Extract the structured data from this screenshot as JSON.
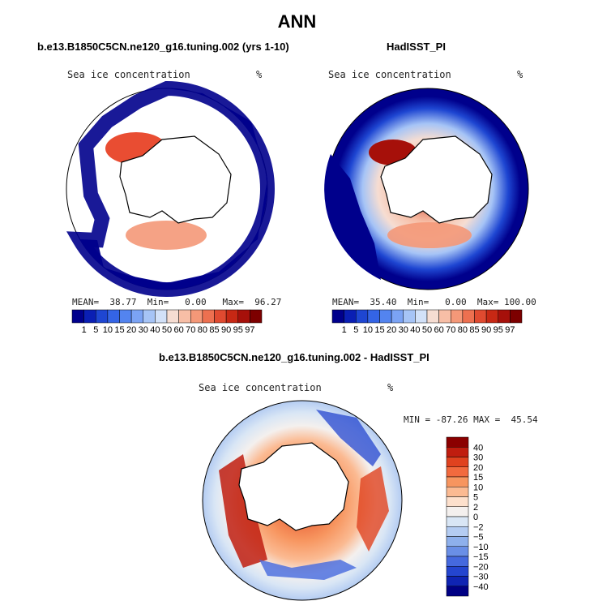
{
  "figure": {
    "title": "ANN",
    "panels": [
      {
        "title": "b.e13.B1850C5CN.ne120_g16.tuning.002 (yrs 1-10)",
        "variable": "Sea ice concentration",
        "units": "%",
        "stats": {
          "mean_label": "MEAN=",
          "mean": "38.77",
          "min_label": "Min=",
          "min": "0.00",
          "max_label": "Max=",
          "max": "96.27"
        }
      },
      {
        "title": "HadISST_PI",
        "variable": "Sea ice concentration",
        "units": "%",
        "stats": {
          "mean_label": "MEAN=",
          "mean": "35.40",
          "min_label": "Min=",
          "min": "0.00",
          "max_label": "Max=",
          "max": "100.00"
        }
      },
      {
        "title": "b.e13.B1850C5CN.ne120_g16.tuning.002 - HadISST_PI",
        "variable": "Sea ice concentration",
        "units": "%",
        "stats_text": "MIN = -87.26 MAX =  45.54"
      }
    ]
  },
  "colorbars": {
    "abs_levels": [
      "1",
      "5",
      "10",
      "15",
      "20",
      "30",
      "40",
      "50",
      "60",
      "70",
      "80",
      "85",
      "90",
      "95",
      "97"
    ],
    "abs_colors": [
      "#00008c",
      "#0a1fb4",
      "#1e46d2",
      "#3464e6",
      "#5384ef",
      "#7ba3f4",
      "#a6c4f6",
      "#d2e1f8",
      "#f6ddd2",
      "#f7bea6",
      "#f49878",
      "#ed7050",
      "#e04a30",
      "#c72814",
      "#a6100a",
      "#7d0000"
    ],
    "diff_levels": [
      "40",
      "30",
      "20",
      "15",
      "10",
      "5",
      "2",
      "0",
      "−2",
      "−5",
      "−10",
      "−15",
      "−20",
      "−30",
      "−40"
    ],
    "diff_colors": [
      "#8b0000",
      "#c01d0f",
      "#e0421f",
      "#f26a3e",
      "#f7955f",
      "#fbba92",
      "#fde0cc",
      "#f4f0ee",
      "#d9e6f5",
      "#b4ccf2",
      "#8eb0ec",
      "#6a8fe6",
      "#4569de",
      "#2445cf",
      "#0f24b3",
      "#000084"
    ]
  },
  "map_style": {
    "ice_region_color": "#e94d32",
    "land_color": "#ffffff",
    "coast_color": "#000000"
  }
}
